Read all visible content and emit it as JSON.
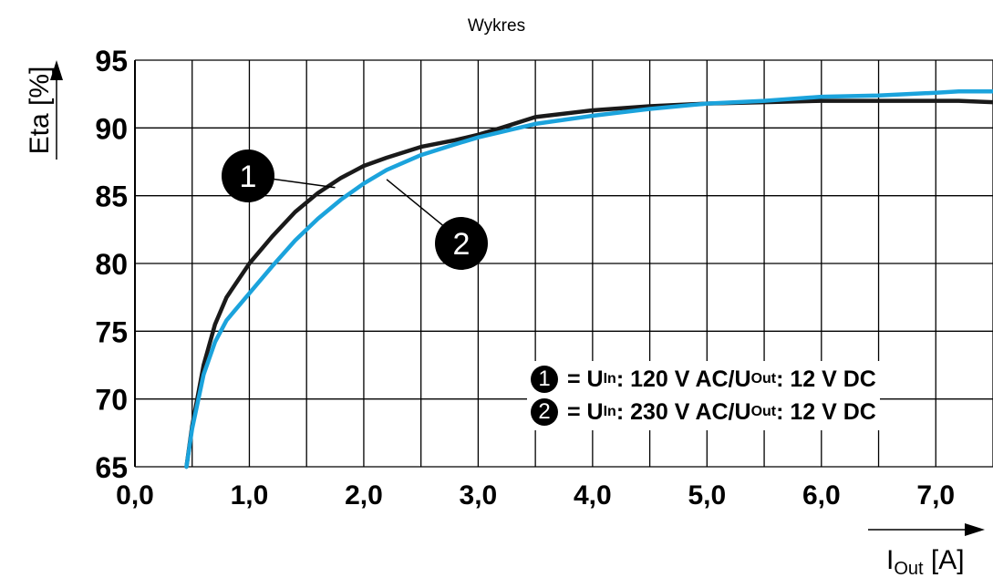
{
  "chart_data": {
    "type": "line",
    "title": "Wykres",
    "ylabel": "Eta [%]",
    "xlabel_main": "I",
    "xlabel_sub": "Out",
    "xlabel_unit": " [A]",
    "xlim": [
      0,
      7.5
    ],
    "ylim": [
      65,
      95
    ],
    "x_ticks": [
      "0,0",
      "1,0",
      "2,0",
      "3,0",
      "4,0",
      "5,0",
      "6,0",
      "7,0"
    ],
    "y_ticks": [
      "65",
      "70",
      "75",
      "80",
      "85",
      "90",
      "95"
    ],
    "grid": true,
    "series": [
      {
        "marker": "1",
        "color": "#1a1a1a",
        "x": [
          0.45,
          0.5,
          0.6,
          0.7,
          0.8,
          1.0,
          1.2,
          1.4,
          1.6,
          1.8,
          2.0,
          2.2,
          2.5,
          2.8,
          3.0,
          3.2,
          3.5,
          4.0,
          4.5,
          5.0,
          5.5,
          6.0,
          6.5,
          7.0,
          7.2,
          7.5
        ],
        "y": [
          65.0,
          68.0,
          72.5,
          75.5,
          77.5,
          80.0,
          82.0,
          83.8,
          85.2,
          86.3,
          87.2,
          87.8,
          88.6,
          89.1,
          89.5,
          90.0,
          90.8,
          91.3,
          91.6,
          91.8,
          91.9,
          92.0,
          92.0,
          92.0,
          92.0,
          91.9
        ]
      },
      {
        "marker": "2",
        "color": "#1ba3dc",
        "x": [
          0.45,
          0.5,
          0.6,
          0.7,
          0.8,
          1.0,
          1.2,
          1.4,
          1.6,
          1.8,
          2.0,
          2.2,
          2.5,
          2.8,
          3.0,
          3.2,
          3.5,
          4.0,
          4.5,
          5.0,
          5.5,
          6.0,
          6.5,
          7.0,
          7.2,
          7.5
        ],
        "y": [
          65.0,
          67.8,
          71.8,
          74.2,
          75.8,
          77.8,
          79.8,
          81.7,
          83.3,
          84.7,
          85.9,
          86.9,
          88.0,
          88.8,
          89.3,
          89.7,
          90.3,
          90.9,
          91.4,
          91.8,
          92.0,
          92.3,
          92.4,
          92.6,
          92.7,
          92.7
        ]
      }
    ],
    "legend": [
      {
        "marker": "1",
        "pre": "= U",
        "sub1": "In",
        "mid": ": 120 V AC/U",
        "sub2": "Out",
        "post": ": 12 V DC"
      },
      {
        "marker": "2",
        "pre": "= U",
        "sub1": "In",
        "mid": ": 230 V AC/U",
        "sub2": "Out",
        "post": ": 12 V DC"
      }
    ],
    "legend_placement": "bottom-right"
  }
}
